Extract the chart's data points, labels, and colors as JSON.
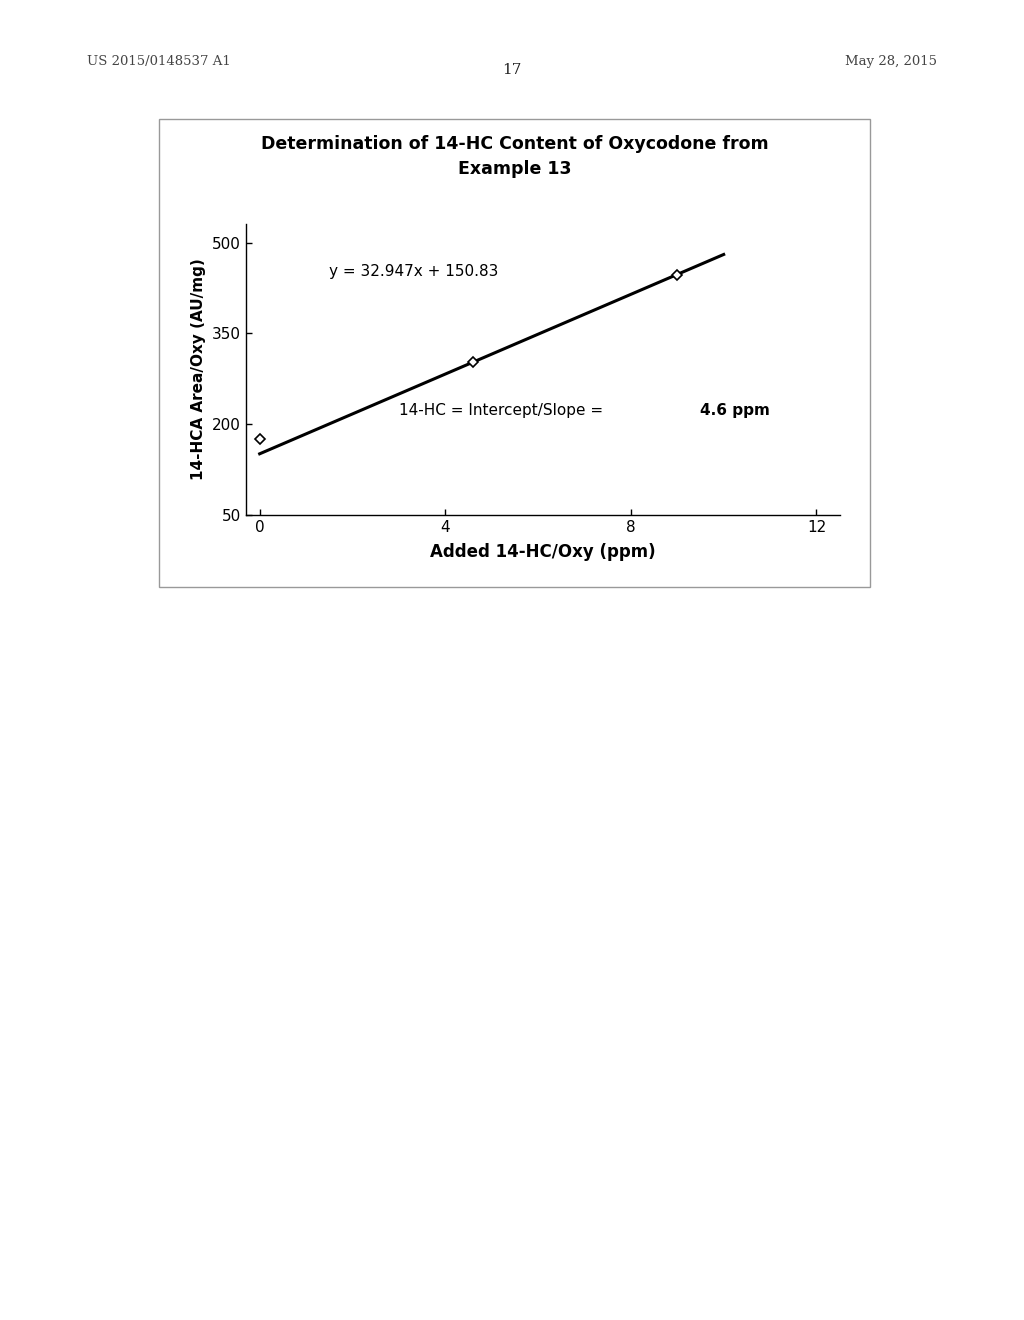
{
  "title_line1": "Determination of 14-HC Content of Oxycodone from",
  "title_line2": "Example 13",
  "xlabel": "Added 14-HC/Oxy (ppm)",
  "ylabel": "14-HCA Area/Oxy (AU/mg)",
  "equation_text": "y = 32.947x + 150.83",
  "annotation_normal": "14-HC = Intercept/Slope = ",
  "annotation_bold": "4.6 ppm",
  "slope": 32.947,
  "intercept": 150.83,
  "data_x": [
    0.0,
    4.6,
    9.0
  ],
  "data_y": [
    175,
    302,
    447
  ],
  "xlim": [
    -0.3,
    12.5
  ],
  "ylim": [
    50,
    530
  ],
  "xticks": [
    0,
    4,
    8,
    12
  ],
  "yticks": [
    50,
    200,
    350,
    500
  ],
  "header_left": "US 2015/0148537 A1",
  "header_right": "May 28, 2015",
  "page_number": "17",
  "background_color": "#ffffff",
  "line_color": "#000000",
  "marker_color": "#000000"
}
